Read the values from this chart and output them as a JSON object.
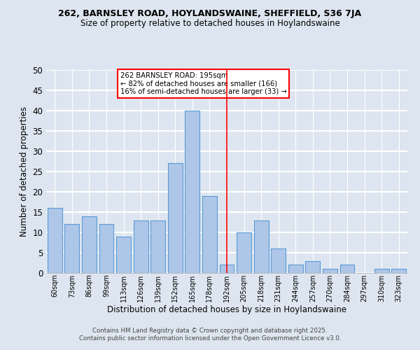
{
  "title_line1": "262, BARNSLEY ROAD, HOYLANDSWAINE, SHEFFIELD, S36 7JA",
  "title_line2": "Size of property relative to detached houses in Hoylandswaine",
  "xlabel": "Distribution of detached houses by size in Hoylandswaine",
  "ylabel": "Number of detached properties",
  "categories": [
    "60sqm",
    "73sqm",
    "86sqm",
    "99sqm",
    "113sqm",
    "126sqm",
    "139sqm",
    "152sqm",
    "165sqm",
    "178sqm",
    "192sqm",
    "205sqm",
    "218sqm",
    "231sqm",
    "244sqm",
    "257sqm",
    "270sqm",
    "284sqm",
    "297sqm",
    "310sqm",
    "323sqm"
  ],
  "values": [
    16,
    12,
    14,
    12,
    9,
    13,
    13,
    27,
    40,
    19,
    2,
    10,
    13,
    6,
    2,
    3,
    1,
    2,
    0,
    1,
    1
  ],
  "bar_color": "#aec6e8",
  "bar_edge_color": "#5a9bd5",
  "ylim": [
    0,
    50
  ],
  "yticks": [
    0,
    5,
    10,
    15,
    20,
    25,
    30,
    35,
    40,
    45,
    50
  ],
  "vline_x_index": 10,
  "vline_color": "red",
  "annotation_text": "262 BARNSLEY ROAD: 195sqm\n← 82% of detached houses are smaller (166)\n16% of semi-detached houses are larger (33) →",
  "annotation_box_color": "white",
  "annotation_box_edge": "red",
  "footer_line1": "Contains HM Land Registry data © Crown copyright and database right 2025.",
  "footer_line2": "Contains public sector information licensed under the Open Government Licence v3.0.",
  "background_color": "#dde6f0"
}
